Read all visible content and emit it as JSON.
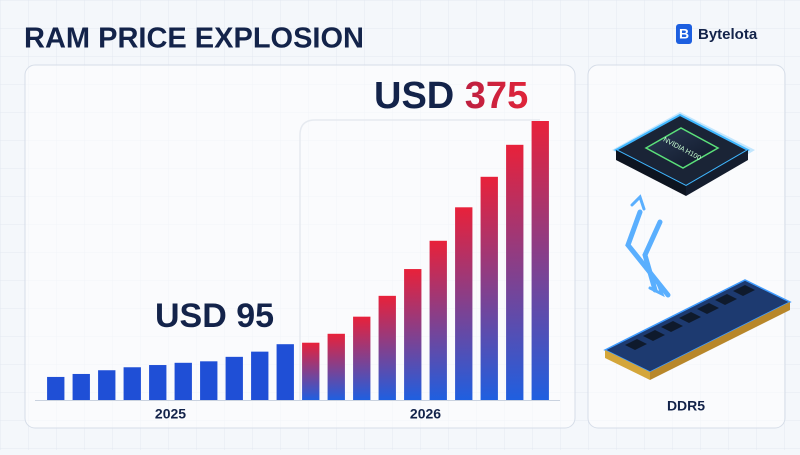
{
  "header": {
    "title": "RAM PRICE EXPLOSION",
    "brand": "Bytelota"
  },
  "chart_data": {
    "type": "bar",
    "groups": [
      {
        "label": "2025",
        "values": [
          31,
          35,
          40,
          44,
          47,
          50,
          52,
          58,
          65,
          75
        ],
        "color": "#1f4fd6"
      },
      {
        "label": "2026",
        "values": [
          77,
          89,
          112,
          140,
          176,
          214,
          259,
          300,
          343,
          375
        ],
        "gradient": [
          "#e8213a",
          "#1f5fe0"
        ]
      }
    ],
    "annotations": [
      {
        "prefix": "USD",
        "amount": "95"
      },
      {
        "prefix": "USD",
        "amount": "375"
      }
    ]
  },
  "side_panel": {
    "chip_label": "NVIDIA H100",
    "ram_label": "DDR5"
  }
}
